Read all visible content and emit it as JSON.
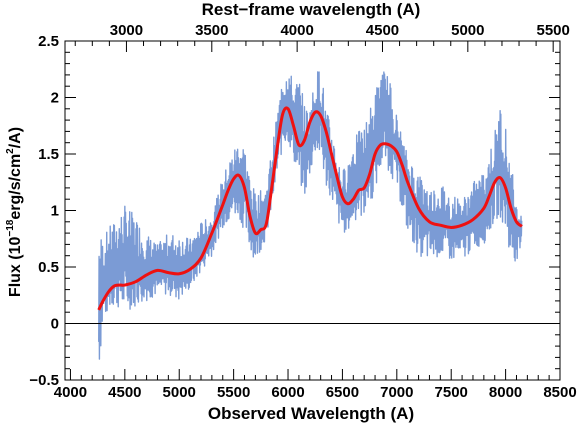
{
  "chart_data": {
    "type": "line",
    "xlabel": "Observed Wavelength (A)",
    "top_xlabel": "Rest−frame wavelength (A)",
    "ylabel_main": "Flux (10",
    "ylabel_exp": "−18",
    "ylabel_mid": "erg/s/cm",
    "ylabel_exp2": "2",
    "ylabel_end": "/A)",
    "xlim": [
      3950,
      8500
    ],
    "ylim": [
      -0.5,
      2.5
    ],
    "top_xlim": [
      2640,
      5540
    ],
    "x_ticks": [
      4000,
      4500,
      5000,
      5500,
      6000,
      6500,
      7000,
      7500,
      8000,
      8500
    ],
    "x_tick_labels": [
      "4000",
      "4500",
      "5000",
      "5500",
      "6000",
      "6500",
      "7000",
      "7500",
      "8000",
      "8500"
    ],
    "top_ticks": [
      3000,
      3500,
      4000,
      4500,
      5000,
      5500
    ],
    "top_tick_labels": [
      "3000",
      "3500",
      "4000",
      "4500",
      "5000",
      "5500"
    ],
    "y_ticks": [
      -0.5,
      0,
      0.5,
      1,
      1.5,
      2,
      2.5
    ],
    "y_tick_labels": [
      "−0.5",
      "0",
      "0.5",
      "1",
      "1.5",
      "2",
      "2.5"
    ],
    "zero_line": 0,
    "colors": {
      "spectrum": "#7b9bd5",
      "model": "#ee1111",
      "axis": "#000000"
    },
    "series": [
      {
        "kind": "noisy-spectrum",
        "x": [
          4260,
          4300,
          4350,
          4400,
          4500,
          4600,
          4700,
          4800,
          4900,
          5000,
          5100,
          5200,
          5300,
          5400,
          5500,
          5550,
          5600,
          5650,
          5700,
          5800,
          5850,
          5900,
          5950,
          6000,
          6050,
          6100,
          6150,
          6200,
          6250,
          6300,
          6350,
          6400,
          6450,
          6500,
          6550,
          6600,
          6700,
          6800,
          6850,
          6900,
          6950,
          7000,
          7050,
          7100,
          7200,
          7300,
          7400,
          7500,
          7600,
          7700,
          7800,
          7900,
          7950,
          8000,
          8050,
          8100,
          8150
        ],
        "lo": [
          -0.45,
          0.0,
          0.1,
          0.15,
          0.1,
          0.15,
          0.2,
          0.25,
          0.25,
          0.2,
          0.3,
          0.45,
          0.6,
          0.85,
          0.95,
          0.95,
          0.8,
          0.65,
          0.55,
          0.75,
          1.0,
          1.3,
          1.55,
          1.6,
          1.45,
          1.25,
          1.1,
          1.3,
          1.5,
          1.45,
          1.2,
          1.1,
          0.9,
          0.8,
          0.8,
          0.9,
          0.95,
          1.15,
          1.35,
          1.4,
          1.3,
          1.2,
          1.0,
          0.8,
          0.6,
          0.55,
          0.6,
          0.55,
          0.55,
          0.65,
          0.7,
          0.9,
          0.95,
          0.8,
          0.55,
          0.55,
          0.6
        ],
        "hi": [
          0.85,
          0.75,
          0.85,
          0.9,
          1.05,
          0.95,
          0.8,
          0.7,
          0.8,
          0.8,
          0.75,
          0.9,
          0.95,
          1.3,
          1.55,
          1.65,
          1.6,
          1.3,
          1.15,
          1.2,
          1.55,
          1.85,
          2.2,
          2.35,
          2.1,
          2.2,
          1.95,
          1.9,
          2.2,
          2.3,
          1.9,
          1.75,
          1.5,
          1.35,
          1.45,
          1.65,
          1.75,
          2.05,
          2.25,
          2.25,
          2.1,
          1.85,
          1.65,
          1.5,
          1.35,
          1.2,
          1.25,
          1.15,
          1.1,
          1.25,
          1.35,
          1.7,
          1.95,
          1.75,
          1.45,
          1.05,
          1.05
        ]
      },
      {
        "kind": "smooth-model",
        "x": [
          4260,
          4300,
          4350,
          4400,
          4450,
          4500,
          4600,
          4700,
          4800,
          4900,
          5000,
          5100,
          5200,
          5300,
          5400,
          5450,
          5500,
          5550,
          5600,
          5650,
          5700,
          5750,
          5800,
          5850,
          5900,
          5950,
          6000,
          6050,
          6100,
          6150,
          6200,
          6250,
          6300,
          6350,
          6400,
          6450,
          6500,
          6550,
          6600,
          6650,
          6700,
          6750,
          6800,
          6850,
          6900,
          6950,
          7000,
          7050,
          7100,
          7200,
          7300,
          7400,
          7500,
          7600,
          7700,
          7800,
          7850,
          7900,
          7950,
          8000,
          8050,
          8100,
          8150
        ],
        "y": [
          0.12,
          0.2,
          0.28,
          0.33,
          0.34,
          0.34,
          0.37,
          0.43,
          0.47,
          0.45,
          0.44,
          0.48,
          0.58,
          0.8,
          1.05,
          1.18,
          1.28,
          1.31,
          1.2,
          0.95,
          0.8,
          0.83,
          0.88,
          1.2,
          1.55,
          1.85,
          1.9,
          1.75,
          1.58,
          1.62,
          1.78,
          1.87,
          1.84,
          1.7,
          1.5,
          1.3,
          1.12,
          1.06,
          1.1,
          1.18,
          1.2,
          1.32,
          1.5,
          1.58,
          1.59,
          1.57,
          1.52,
          1.4,
          1.25,
          1.02,
          0.9,
          0.87,
          0.85,
          0.87,
          0.92,
          1.02,
          1.13,
          1.25,
          1.29,
          1.2,
          1.02,
          0.9,
          0.86
        ]
      }
    ]
  }
}
